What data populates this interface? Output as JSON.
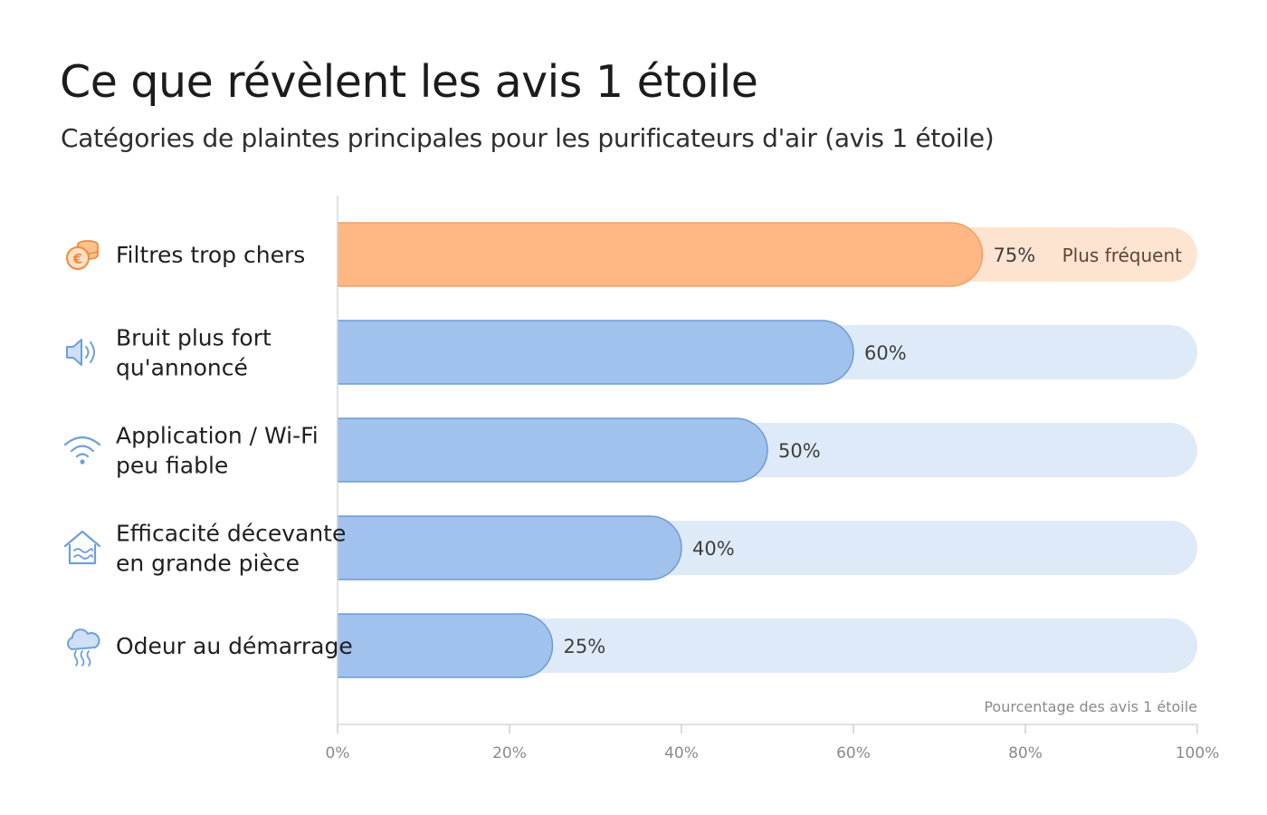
{
  "title": "Ce que révèlent les avis 1 étoile",
  "subtitle": "Catégories de plaintes principales pour les purificateurs d'air (avis 1 étoile)",
  "colors": {
    "highlight_bar": "#ffb884",
    "highlight_stroke": "#eea06a",
    "highlight_track": "#fde2cc",
    "bar": "#a1c2ec",
    "bar_stroke": "#6d9ad6",
    "track": "#dfeaf8",
    "icon_orange": "#f08a3c",
    "icon_blue": "#6e9fd9"
  },
  "chart_data": {
    "type": "bar",
    "orientation": "horizontal",
    "categories": [
      [
        "Filtres trop chers"
      ],
      [
        "Bruit plus fort",
        "qu'annoncé"
      ],
      [
        "Application / Wi-Fi",
        "peu fiable"
      ],
      [
        "Efficacité décevante",
        "en grande pièce"
      ],
      [
        "Odeur au démarrage"
      ]
    ],
    "icons": [
      "coins-euro-icon",
      "speaker-icon",
      "wifi-icon",
      "house-airflow-icon",
      "odor-cloud-icon"
    ],
    "values": [
      75,
      60,
      50,
      40,
      25
    ],
    "value_labels": [
      "75%",
      "60%",
      "50%",
      "40%",
      "25%"
    ],
    "unit": "%",
    "highlight_index": 0,
    "highlight_label": "Plus fréquent",
    "xlabel": "Pourcentage des avis 1 étoile",
    "xlim": [
      0,
      100
    ],
    "xticks": [
      0,
      20,
      40,
      60,
      80,
      100
    ],
    "xtick_labels": [
      "0%",
      "20%",
      "40%",
      "60%",
      "80%",
      "100%"
    ],
    "grid": false,
    "legend": "none"
  }
}
